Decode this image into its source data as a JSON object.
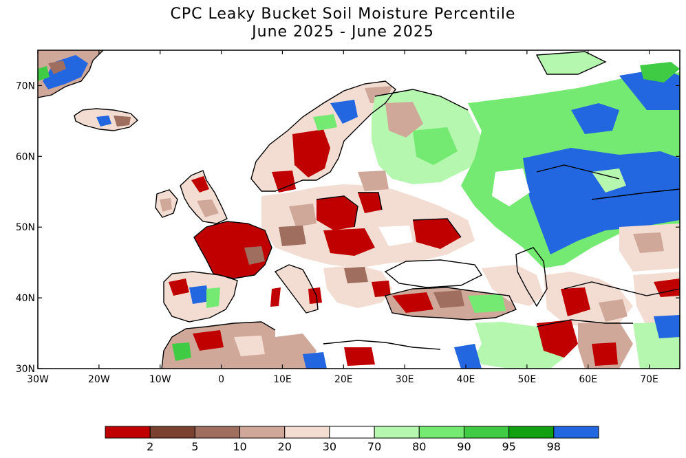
{
  "title": {
    "line1": "CPC Leaky Bucket Soil Moisture Percentile",
    "line2": "June 2025 - June 2025"
  },
  "map": {
    "lon_range": [
      -30,
      75
    ],
    "lat_range": [
      30,
      75
    ],
    "lon_ticks": [
      "30W",
      "20W",
      "10W",
      "0",
      "10E",
      "20E",
      "30E",
      "40E",
      "50E",
      "60E",
      "70E"
    ],
    "lat_ticks": [
      "30N",
      "40N",
      "50N",
      "60N",
      "70N"
    ]
  },
  "legend": {
    "colors": [
      "#c00000",
      "#7a4030",
      "#a06e5e",
      "#d0a89a",
      "#f3ddd2",
      "#ffffff",
      "#b6f7b0",
      "#74ea72",
      "#3fcc44",
      "#10a010",
      "#2266e0"
    ],
    "labels": [
      "2",
      "5",
      "10",
      "20",
      "30",
      "70",
      "80",
      "90",
      "95",
      "98"
    ]
  },
  "colors": {
    "land_outline": "#000000",
    "ocean": "#ffffff"
  }
}
